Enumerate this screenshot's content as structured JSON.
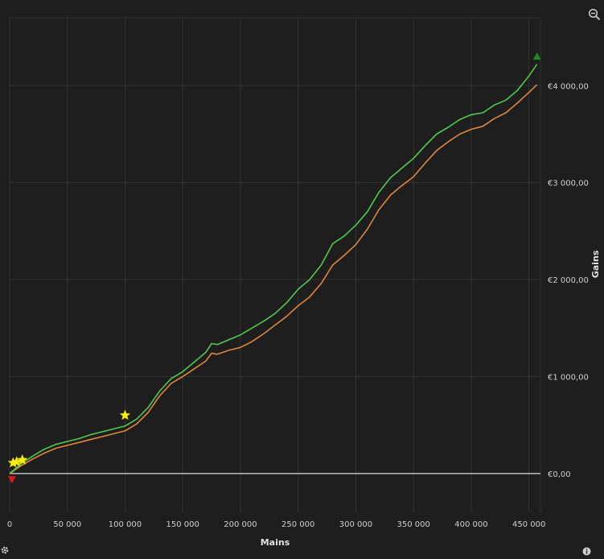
{
  "chart_data": {
    "type": "line",
    "xlabel": "Mains",
    "ylabel": "Gains",
    "xlim": [
      0,
      460000
    ],
    "ylim": [
      -400,
      4700
    ],
    "x_ticks": [
      0,
      50000,
      100000,
      150000,
      200000,
      250000,
      300000,
      350000,
      400000,
      450000
    ],
    "x_tick_labels": [
      "0",
      "50 000",
      "100 000",
      "150 000",
      "200 000",
      "250 000",
      "300 000",
      "350 000",
      "400 000",
      "450 000"
    ],
    "y_ticks": [
      0,
      1000,
      2000,
      3000,
      4000
    ],
    "y_tick_labels": [
      "€0,00",
      "€1 000,00",
      "€2 000,00",
      "€3 000,00",
      "€4 000,00"
    ],
    "grid": true,
    "series": [
      {
        "color": "#4ec94e",
        "x": [
          0,
          5000,
          10000,
          20000,
          30000,
          40000,
          50000,
          60000,
          70000,
          80000,
          90000,
          100000,
          110000,
          120000,
          130000,
          140000,
          150000,
          160000,
          170000,
          175000,
          180000,
          190000,
          200000,
          210000,
          220000,
          230000,
          240000,
          250000,
          260000,
          270000,
          280000,
          290000,
          300000,
          310000,
          320000,
          330000,
          340000,
          350000,
          360000,
          370000,
          380000,
          390000,
          400000,
          410000,
          420000,
          430000,
          440000,
          450000,
          457000
        ],
        "y": [
          0,
          50,
          100,
          180,
          250,
          300,
          330,
          360,
          400,
          430,
          460,
          490,
          560,
          680,
          850,
          980,
          1050,
          1150,
          1250,
          1340,
          1330,
          1380,
          1430,
          1500,
          1570,
          1650,
          1760,
          1900,
          2000,
          2150,
          2370,
          2450,
          2560,
          2700,
          2900,
          3050,
          3150,
          3250,
          3380,
          3500,
          3570,
          3650,
          3700,
          3720,
          3800,
          3850,
          3950,
          4100,
          4220
        ]
      },
      {
        "color": "#e0853a",
        "x": [
          0,
          5000,
          10000,
          20000,
          30000,
          40000,
          50000,
          60000,
          70000,
          80000,
          90000,
          100000,
          110000,
          120000,
          130000,
          140000,
          150000,
          160000,
          170000,
          175000,
          180000,
          190000,
          200000,
          210000,
          220000,
          230000,
          240000,
          250000,
          260000,
          270000,
          280000,
          290000,
          300000,
          310000,
          320000,
          330000,
          340000,
          350000,
          360000,
          370000,
          380000,
          390000,
          400000,
          410000,
          420000,
          430000,
          440000,
          450000,
          457000
        ],
        "y": [
          0,
          40,
          80,
          150,
          210,
          260,
          290,
          320,
          350,
          380,
          410,
          440,
          510,
          630,
          800,
          930,
          1000,
          1080,
          1160,
          1240,
          1230,
          1270,
          1300,
          1360,
          1440,
          1530,
          1620,
          1730,
          1820,
          1960,
          2150,
          2250,
          2360,
          2520,
          2720,
          2870,
          2970,
          3060,
          3200,
          3330,
          3420,
          3500,
          3550,
          3580,
          3660,
          3720,
          3820,
          3930,
          4010
        ]
      }
    ],
    "zero_line": 0,
    "markers": [
      {
        "shape": "star",
        "color": "#ffee00",
        "x": 3000,
        "y": 110
      },
      {
        "shape": "star",
        "color": "#ffee00",
        "x": 6000,
        "y": 120
      },
      {
        "shape": "star",
        "color": "#ffee00",
        "x": 11000,
        "y": 140
      },
      {
        "shape": "star",
        "color": "#ffee00",
        "x": 100000,
        "y": 600
      },
      {
        "shape": "triangle-down",
        "color": "#e01818",
        "x": 2000,
        "y": -60
      },
      {
        "shape": "triangle-up",
        "color": "#1e8a1e",
        "x": 457000,
        "y": 4300
      }
    ]
  },
  "icons": {
    "zoom": "zoom-out-icon",
    "settings": "gear-icon",
    "info": "info-icon"
  }
}
